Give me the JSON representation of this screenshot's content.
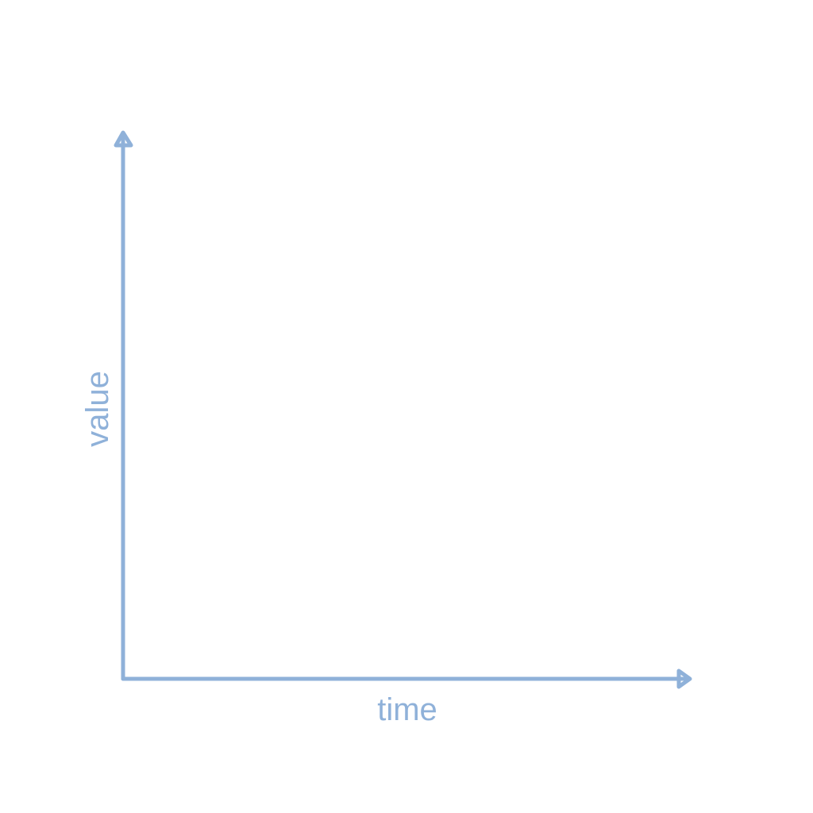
{
  "chart_data": {
    "type": "line",
    "title": "",
    "xlabel": "time",
    "ylabel": "value",
    "series": [],
    "grid": false,
    "legend": "none",
    "axis_color": "#8fb1d9",
    "axis_arrows": true
  }
}
